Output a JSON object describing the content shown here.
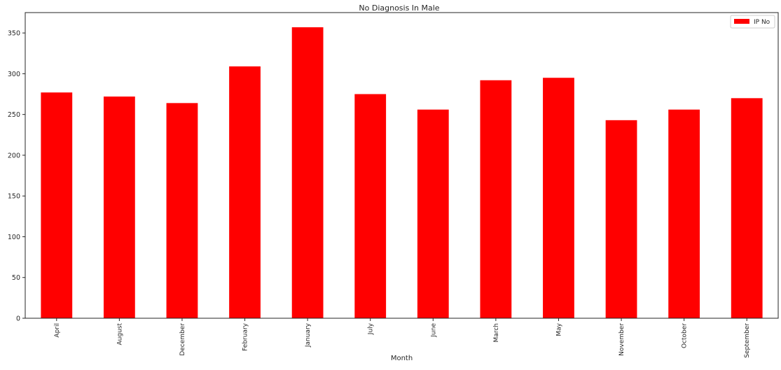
{
  "chart_data": {
    "type": "bar",
    "title": "No Diagnosis In Male",
    "xlabel": "Month",
    "ylabel": "",
    "categories": [
      "April",
      "August",
      "December",
      "February",
      "January",
      "July",
      "June",
      "March",
      "May",
      "November",
      "October",
      "September"
    ],
    "series": [
      {
        "name": "IP No",
        "color": "#ff0000",
        "values": [
          277,
          272,
          264,
          309,
          357,
          275,
          256,
          292,
          295,
          243,
          256,
          270
        ]
      }
    ],
    "ylim": [
      0,
      375
    ],
    "yticks": [
      0,
      50,
      100,
      150,
      200,
      250,
      300,
      350
    ],
    "grid": false,
    "legend_position": "top-right"
  }
}
